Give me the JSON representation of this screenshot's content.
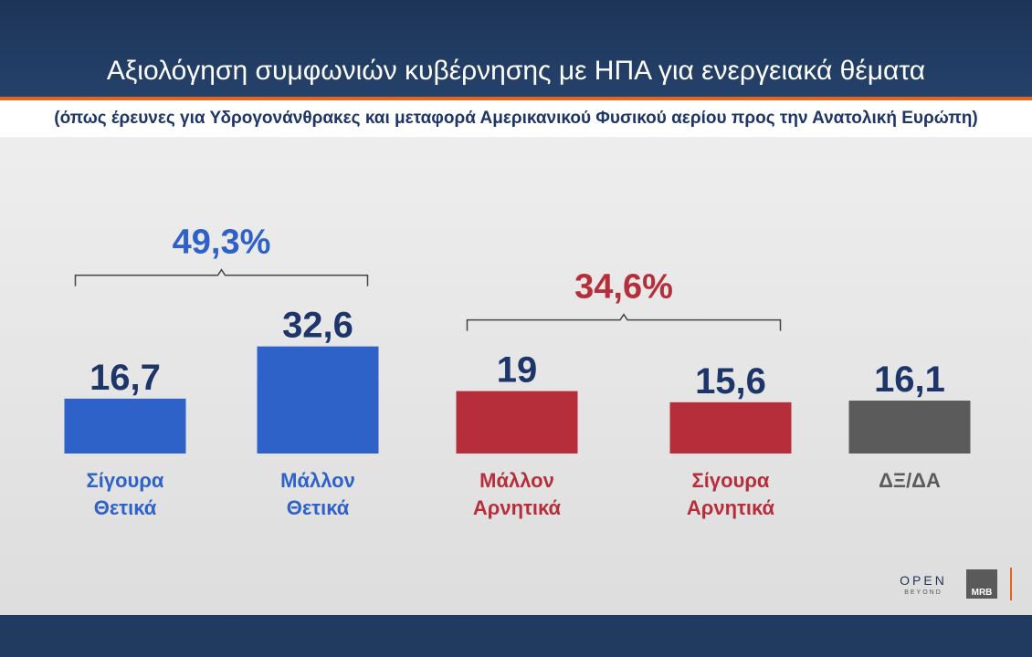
{
  "chart_data": {
    "type": "bar",
    "title": "Αξιολόγηση συμφωνιών κυβέρνησης με ΗΠΑ για ενεργειακά θέματα",
    "subtitle": "(όπως έρευνες για Υδρογονάνθρακες και μεταφορά Αμερικανικού Φυσικού αερίου προς την Ανατολική Ευρώπη)",
    "categories": [
      [
        "Σίγουρα",
        "Θετικά"
      ],
      [
        "Μάλλον",
        "Θετικά"
      ],
      [
        "Μάλλον",
        "Αρνητικά"
      ],
      [
        "Σίγουρα",
        "Αρνητικά"
      ],
      [
        "ΔΞ/ΔΑ"
      ]
    ],
    "values": [
      16.7,
      32.6,
      19,
      15.6,
      16.1
    ],
    "value_labels": [
      "16,7",
      "32,6",
      "19",
      "15,6",
      "16,1"
    ],
    "colors": [
      "#2f62c8",
      "#2f62c8",
      "#b72e3b",
      "#b72e3b",
      "#5b5b5b"
    ],
    "label_colors": [
      "#2f62c8",
      "#2f62c8",
      "#b72e3b",
      "#b72e3b",
      "#5b5b5b"
    ],
    "value_label_color": "#1d3569",
    "groups": [
      {
        "label": "49,3%",
        "from": 0,
        "to": 1,
        "color": "#2f62c8"
      },
      {
        "label": "34,6%",
        "from": 2,
        "to": 3,
        "color": "#b72e3b"
      }
    ],
    "xlabel": "",
    "ylabel": "",
    "grid": false,
    "legend": "none"
  },
  "branding": {
    "open_logo": "OPEN",
    "open_sub": "BEYOND",
    "mrb_logo": "MRB"
  },
  "colors": {
    "header_bg": "#1d3557",
    "accent": "#e8621c",
    "footer_bg": "#213b60"
  }
}
